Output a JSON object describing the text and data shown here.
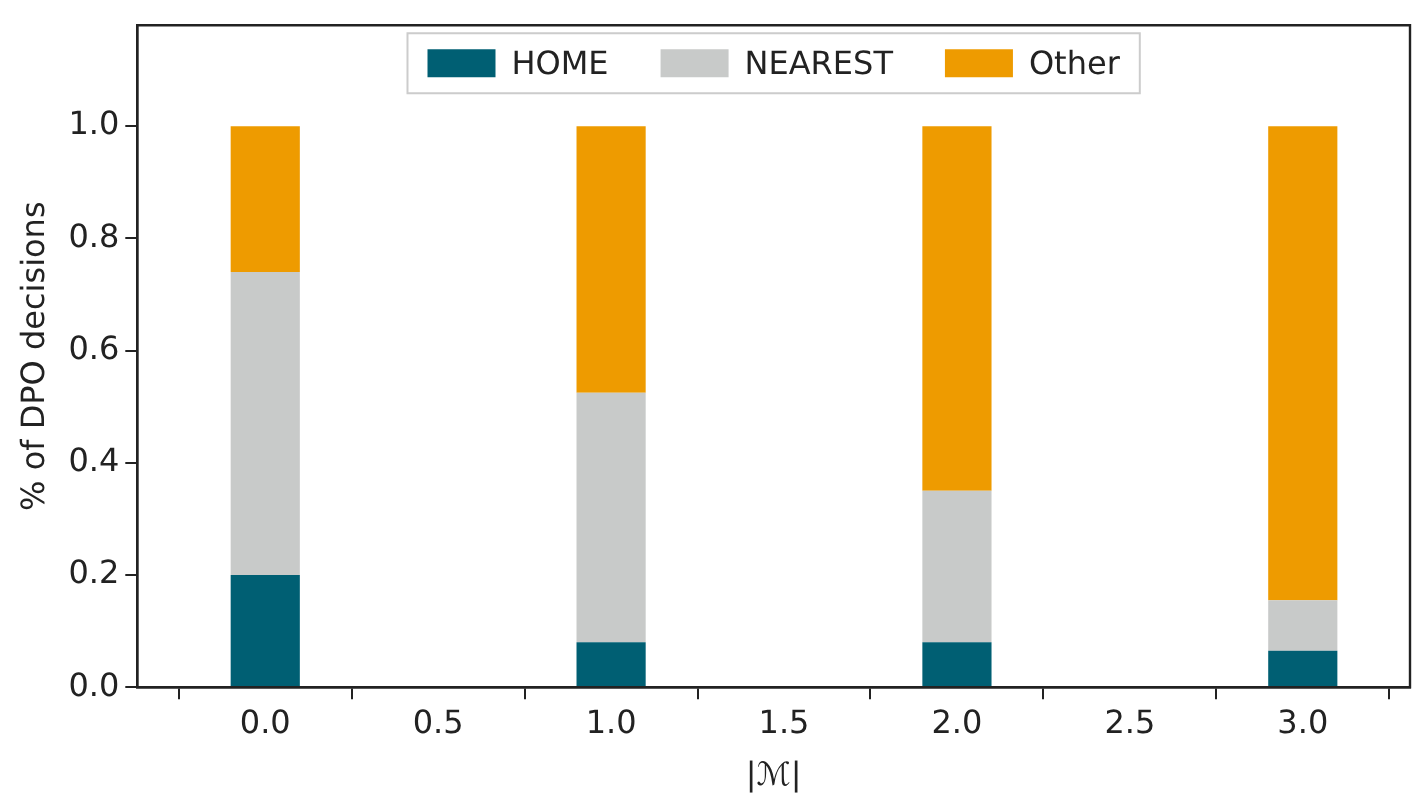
{
  "chart_data": {
    "type": "bar",
    "stacked": true,
    "xlabel": "|ℳ|",
    "ylabel": "% of DPO decisions",
    "x": [
      0,
      1,
      2,
      3
    ],
    "xlim": [
      -0.37,
      3.31
    ],
    "xticks": [
      {
        "value": 0,
        "label": "0.0"
      },
      {
        "value": 0.5,
        "label": "0.5"
      },
      {
        "value": 1,
        "label": "1.0"
      },
      {
        "value": 1.5,
        "label": "1.5"
      },
      {
        "value": 2,
        "label": "2.0"
      },
      {
        "value": 2.5,
        "label": "2.5"
      },
      {
        "value": 3,
        "label": "3.0"
      }
    ],
    "ylim": [
      0,
      1.18
    ],
    "yticks": [
      {
        "value": 0,
        "label": "0.0"
      },
      {
        "value": 0.2,
        "label": "0.2"
      },
      {
        "value": 0.4,
        "label": "0.4"
      },
      {
        "value": 0.6,
        "label": "0.6"
      },
      {
        "value": 0.8,
        "label": "0.8"
      },
      {
        "value": 1,
        "label": "1.0"
      }
    ],
    "series": [
      {
        "name": "HOME",
        "color": "#005f73",
        "values": [
          0.2,
          0.08,
          0.08,
          0.065
        ]
      },
      {
        "name": "NEAREST",
        "color": "#c8cac9",
        "values": [
          0.54,
          0.445,
          0.27,
          0.09
        ]
      },
      {
        "name": "Other",
        "color": "#ee9b00",
        "values": [
          0.26,
          0.475,
          0.65,
          0.845
        ]
      }
    ],
    "grid": false,
    "legend": "top"
  }
}
